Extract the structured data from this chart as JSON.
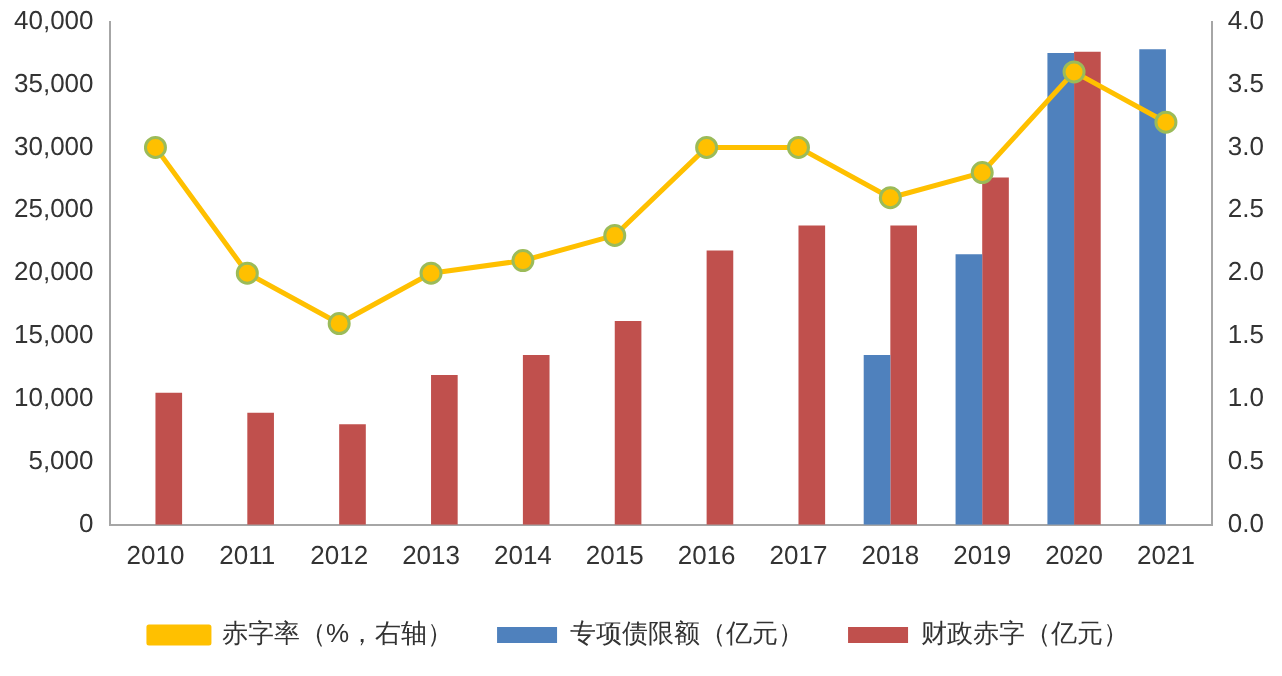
{
  "chart_data": {
    "type": "bar",
    "categories": [
      "2010",
      "2011",
      "2012",
      "2013",
      "2014",
      "2015",
      "2016",
      "2017",
      "2018",
      "2019",
      "2020",
      "2021"
    ],
    "series": [
      {
        "name": "专项债限额（亿元）",
        "color": "#4f81bd",
        "values": [
          null,
          null,
          null,
          null,
          null,
          null,
          null,
          null,
          13500,
          21500,
          37500,
          37800
        ]
      },
      {
        "name": "财政赤字（亿元）",
        "color": "#c0504d",
        "values": [
          10500,
          8900,
          8000,
          11900,
          13500,
          16200,
          21800,
          23800,
          23800,
          27600,
          37600,
          null
        ]
      },
      {
        "name": "赤字率（%，右轴）",
        "type": "line",
        "axis": "y2",
        "color": "#ffc000",
        "values": [
          3.0,
          2.0,
          1.6,
          2.0,
          2.1,
          2.3,
          3.0,
          3.0,
          2.6,
          2.8,
          3.6,
          3.2
        ]
      }
    ],
    "ylim": [
      0,
      40000
    ],
    "yticks": [
      0,
      {
        "value": 5000,
        "label": "5,000"
      },
      {
        "value": 10000,
        "label": "10,000"
      },
      {
        "value": 15000,
        "label": "15,000"
      },
      {
        "value": 20000,
        "label": "20,000"
      },
      {
        "value": 25000,
        "label": "25,000"
      },
      {
        "value": 30000,
        "label": "30,000"
      },
      {
        "value": 35000,
        "label": "35,000"
      },
      {
        "value": 40000,
        "label": "40,000"
      }
    ],
    "y2lim": [
      0,
      4
    ],
    "y2ticks": [
      {
        "value": 0,
        "label": "0.0"
      },
      {
        "value": 0.5,
        "label": "0.5"
      },
      {
        "value": 1,
        "label": "1.0"
      },
      {
        "value": 1.5,
        "label": "1.5"
      },
      {
        "value": 2,
        "label": "2.0"
      },
      {
        "value": 2.5,
        "label": "2.5"
      },
      {
        "value": 3,
        "label": "3.0"
      },
      {
        "value": 3.5,
        "label": "3.5"
      },
      {
        "value": 4,
        "label": "4.0"
      }
    ],
    "grid": false,
    "legend": "bottom",
    "marker": "circle"
  }
}
